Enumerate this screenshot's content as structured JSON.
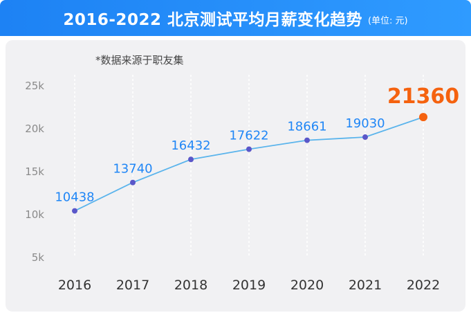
{
  "header": {
    "title": "2016-2022 北京测试平均月薪变化趋势",
    "unit": "(单位: 元)"
  },
  "source_note": "*数据来源于职友集",
  "colors": {
    "header": "#1f86f6",
    "line": "#5ab4ec",
    "point": "#5a57c9",
    "label": "#1f86f6",
    "highlight": "#f5620f"
  },
  "chart_data": {
    "type": "line",
    "title": "2016-2022 北京测试平均月薪变化趋势",
    "unit": "单位: 元",
    "x": [
      "2016",
      "2017",
      "2018",
      "2019",
      "2020",
      "2021",
      "2022"
    ],
    "values": [
      10438,
      13740,
      16432,
      17622,
      18661,
      19030,
      21360
    ],
    "data_labels": [
      "10438",
      "13740",
      "16432",
      "17622",
      "18661",
      "19030",
      "21360"
    ],
    "highlight_index": 6,
    "ylim": [
      5000,
      25000
    ],
    "y_ticks": [
      5000,
      10000,
      15000,
      20000,
      25000
    ],
    "y_tick_labels": [
      "5k",
      "10k",
      "15k",
      "20k",
      "25k"
    ],
    "grid": "vertical dashed",
    "xlabel": "",
    "ylabel": ""
  }
}
